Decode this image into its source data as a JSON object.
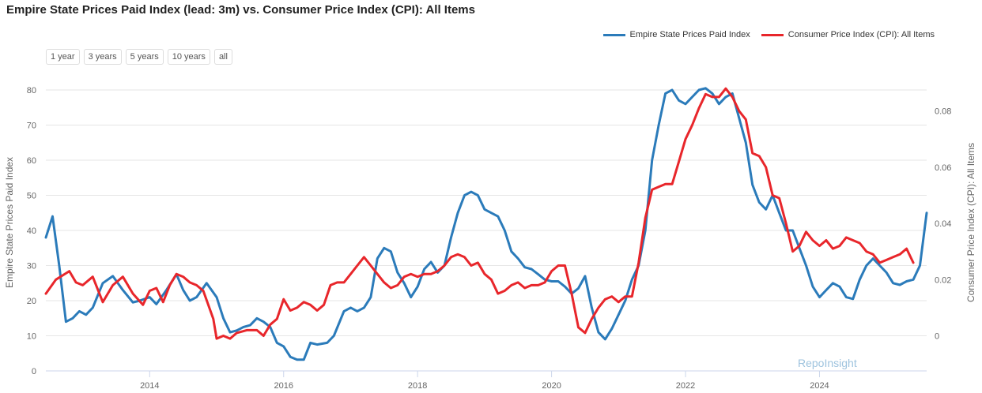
{
  "title": "Empire State Prices Paid Index (lead: 3m) vs. Consumer Price Index (CPI): All Items",
  "legend": [
    {
      "label": "Empire State Prices Paid Index",
      "color": "#2b7bba"
    },
    {
      "label": "Consumer Price Index (CPI): All Items",
      "color": "#e8262b"
    }
  ],
  "range_buttons": [
    "1 year",
    "3 years",
    "5 years",
    "10 years",
    "all"
  ],
  "watermark": "RepoInsight",
  "chart_data": {
    "type": "line",
    "title": "Empire State Prices Paid Index (lead: 3m) vs. Consumer Price Index (CPI): All Items",
    "xlabel": "",
    "ylabel_left": "Empire State Prices Paid Index",
    "ylabel_right": "Consumer Price Index (CPI): All Items",
    "xlim": [
      2012.45,
      2025.6
    ],
    "ylim_left": [
      0,
      80
    ],
    "ylim_right": [
      -0.0125,
      0.0875
    ],
    "x_ticks": [
      2014,
      2016,
      2018,
      2020,
      2022,
      2024
    ],
    "y_left_ticks": [
      0,
      10,
      20,
      30,
      40,
      50,
      60,
      70,
      80
    ],
    "y_right_ticks": [
      0,
      0.02,
      0.04,
      0.06,
      0.08
    ],
    "grid": true,
    "legend_position": "top-right",
    "series": [
      {
        "name": "Empire State Prices Paid Index",
        "axis": "left",
        "color": "#2b7bba",
        "x": [
          2012.45,
          2012.55,
          2012.65,
          2012.75,
          2012.85,
          2012.95,
          2013.05,
          2013.15,
          2013.3,
          2013.45,
          2013.6,
          2013.75,
          2013.85,
          2014.0,
          2014.1,
          2014.25,
          2014.4,
          2014.5,
          2014.6,
          2014.7,
          2014.85,
          2015.0,
          2015.1,
          2015.2,
          2015.3,
          2015.4,
          2015.5,
          2015.6,
          2015.7,
          2015.8,
          2015.9,
          2016.0,
          2016.1,
          2016.2,
          2016.3,
          2016.4,
          2016.5,
          2016.65,
          2016.75,
          2016.9,
          2017.0,
          2017.1,
          2017.2,
          2017.3,
          2017.4,
          2017.5,
          2017.6,
          2017.7,
          2017.8,
          2017.9,
          2018.0,
          2018.1,
          2018.2,
          2018.3,
          2018.4,
          2018.5,
          2018.6,
          2018.7,
          2018.8,
          2018.9,
          2019.0,
          2019.1,
          2019.2,
          2019.3,
          2019.4,
          2019.5,
          2019.6,
          2019.7,
          2019.8,
          2019.9,
          2020.0,
          2020.1,
          2020.2,
          2020.3,
          2020.4,
          2020.5,
          2020.6,
          2020.7,
          2020.8,
          2020.9,
          2021.0,
          2021.1,
          2021.2,
          2021.3,
          2021.4,
          2021.5,
          2021.6,
          2021.7,
          2021.8,
          2021.9,
          2022.0,
          2022.1,
          2022.2,
          2022.3,
          2022.4,
          2022.5,
          2022.6,
          2022.7,
          2022.8,
          2022.9,
          2023.0,
          2023.1,
          2023.2,
          2023.3,
          2023.4,
          2023.5,
          2023.6,
          2023.7,
          2023.8,
          2023.9,
          2024.0,
          2024.1,
          2024.2,
          2024.3,
          2024.4,
          2024.5,
          2024.6,
          2024.7,
          2024.8,
          2024.9,
          2025.0,
          2025.1,
          2025.2,
          2025.3,
          2025.4,
          2025.5,
          2025.6
        ],
        "values": [
          38,
          44,
          30,
          14,
          15,
          17,
          16,
          18,
          25,
          27,
          23,
          19.5,
          20,
          21,
          19,
          23,
          27.5,
          23,
          20,
          21,
          25,
          21,
          15,
          11,
          11.5,
          12.5,
          13,
          15,
          14,
          12.5,
          8,
          7,
          4,
          3.2,
          3.2,
          8,
          7.5,
          8,
          10,
          17,
          18,
          17,
          18,
          21,
          32,
          35,
          34,
          28,
          25,
          21,
          24,
          29,
          31,
          28,
          30,
          38,
          45,
          50,
          51,
          50,
          46,
          45,
          44,
          40,
          34,
          32,
          29.5,
          29,
          27.5,
          26,
          25.5,
          25.5,
          24,
          22,
          23.5,
          27,
          18,
          11,
          9,
          12,
          16,
          20,
          26,
          30,
          40,
          60,
          70,
          79,
          80,
          77,
          76,
          78,
          80,
          80.5,
          79,
          76,
          78,
          79,
          72,
          65,
          53,
          48,
          46,
          50,
          45,
          40,
          40,
          35,
          30,
          24,
          21,
          23,
          25,
          24,
          21,
          20.5,
          26,
          30,
          32,
          30,
          28,
          25,
          24.5,
          25.5,
          26,
          30,
          45
        ]
      },
      {
        "name": "Consumer Price Index (CPI): All Items",
        "axis": "right",
        "color": "#e8262b",
        "x": [
          2012.45,
          2012.6,
          2012.8,
          2012.9,
          2013.0,
          2013.15,
          2013.3,
          2013.45,
          2013.6,
          2013.75,
          2013.9,
          2014.0,
          2014.1,
          2014.2,
          2014.3,
          2014.4,
          2014.5,
          2014.6,
          2014.7,
          2014.8,
          2014.95,
          2015.0,
          2015.1,
          2015.2,
          2015.3,
          2015.45,
          2015.6,
          2015.7,
          2015.8,
          2015.9,
          2016.0,
          2016.1,
          2016.2,
          2016.3,
          2016.4,
          2016.5,
          2016.6,
          2016.7,
          2016.8,
          2016.9,
          2017.0,
          2017.1,
          2017.2,
          2017.3,
          2017.4,
          2017.5,
          2017.6,
          2017.7,
          2017.8,
          2017.9,
          2018.0,
          2018.1,
          2018.2,
          2018.3,
          2018.4,
          2018.5,
          2018.6,
          2018.7,
          2018.8,
          2018.9,
          2019.0,
          2019.1,
          2019.2,
          2019.3,
          2019.4,
          2019.5,
          2019.6,
          2019.7,
          2019.8,
          2019.9,
          2020.0,
          2020.1,
          2020.2,
          2020.3,
          2020.4,
          2020.5,
          2020.6,
          2020.7,
          2020.8,
          2020.9,
          2021.0,
          2021.1,
          2021.2,
          2021.3,
          2021.4,
          2021.5,
          2021.6,
          2021.7,
          2021.8,
          2021.9,
          2022.0,
          2022.1,
          2022.2,
          2022.3,
          2022.4,
          2022.5,
          2022.6,
          2022.7,
          2022.8,
          2022.9,
          2023.0,
          2023.1,
          2023.2,
          2023.3,
          2023.4,
          2023.5,
          2023.6,
          2023.7,
          2023.8,
          2023.9,
          2024.0,
          2024.1,
          2024.2,
          2024.3,
          2024.4,
          2024.5,
          2024.6,
          2024.7,
          2024.8,
          2024.9,
          2025.0,
          2025.1,
          2025.2,
          2025.3,
          2025.4
        ],
        "values": [
          0.015,
          0.02,
          0.023,
          0.019,
          0.018,
          0.021,
          0.012,
          0.018,
          0.021,
          0.015,
          0.011,
          0.016,
          0.017,
          0.012,
          0.018,
          0.022,
          0.021,
          0.019,
          0.018,
          0.016,
          0.006,
          -0.001,
          0.0,
          -0.001,
          0.001,
          0.002,
          0.002,
          0.0,
          0.004,
          0.006,
          0.013,
          0.009,
          0.01,
          0.012,
          0.011,
          0.009,
          0.011,
          0.018,
          0.019,
          0.019,
          0.022,
          0.025,
          0.028,
          0.025,
          0.022,
          0.019,
          0.017,
          0.018,
          0.021,
          0.022,
          0.021,
          0.022,
          0.022,
          0.023,
          0.025,
          0.028,
          0.029,
          0.028,
          0.025,
          0.026,
          0.022,
          0.02,
          0.015,
          0.016,
          0.018,
          0.019,
          0.017,
          0.018,
          0.018,
          0.019,
          0.023,
          0.025,
          0.025,
          0.015,
          0.003,
          0.001,
          0.006,
          0.01,
          0.013,
          0.014,
          0.012,
          0.014,
          0.014,
          0.026,
          0.042,
          0.052,
          0.053,
          0.054,
          0.054,
          0.062,
          0.07,
          0.075,
          0.081,
          0.086,
          0.085,
          0.085,
          0.088,
          0.085,
          0.08,
          0.077,
          0.065,
          0.064,
          0.06,
          0.05,
          0.049,
          0.04,
          0.03,
          0.032,
          0.037,
          0.034,
          0.032,
          0.034,
          0.031,
          0.032,
          0.035,
          0.034,
          0.033,
          0.03,
          0.029,
          0.026,
          0.027,
          0.028,
          0.029,
          0.031,
          0.026
        ]
      }
    ]
  }
}
